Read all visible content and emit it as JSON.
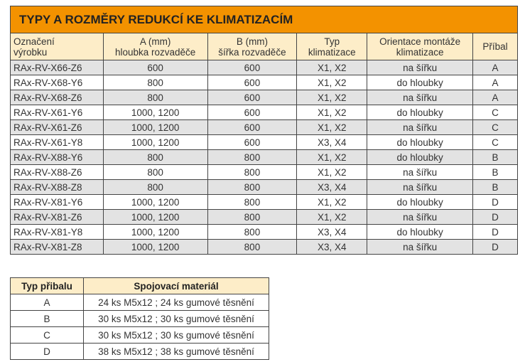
{
  "main_table": {
    "title": "TYPY A ROZMĚRY REDUKCÍ KE KLIMATIZACÍM",
    "headers": [
      [
        "Označení",
        "výrobku"
      ],
      [
        "A (mm)",
        "hloubka rozvaděče"
      ],
      [
        "B (mm)",
        "šířka rozvaděče"
      ],
      [
        "Typ",
        "klimatizace"
      ],
      [
        "Orientace montáže",
        "klimatizace"
      ],
      [
        "Příbal",
        ""
      ]
    ],
    "rows": [
      [
        "RAx-RV-X66-Z6",
        "600",
        "600",
        "X1, X2",
        "na šířku",
        "A"
      ],
      [
        "RAx-RV-X68-Y6",
        "800",
        "600",
        "X1, X2",
        "do hloubky",
        "A"
      ],
      [
        "RAx-RV-X68-Z6",
        "800",
        "600",
        "X1, X2",
        "na šířku",
        "A"
      ],
      [
        "RAx-RV-X61-Y6",
        "1000, 1200",
        "600",
        "X1, X2",
        "do hloubky",
        "C"
      ],
      [
        "RAx-RV-X61-Z6",
        "1000, 1200",
        "600",
        "X1, X2",
        "na šířku",
        "C"
      ],
      [
        "RAx-RV-X61-Y8",
        "1000, 1200",
        "600",
        "X3, X4",
        "do hloubky",
        "C"
      ],
      [
        "RAx-RV-X88-Y6",
        "800",
        "800",
        "X1, X2",
        "do hloubky",
        "B"
      ],
      [
        "RAx-RV-X88-Z6",
        "800",
        "800",
        "X1, X2",
        "na šířku",
        "B"
      ],
      [
        "RAx-RV-X88-Z8",
        "800",
        "800",
        "X3, X4",
        "na šířku",
        "B"
      ],
      [
        "RAx-RV-X81-Y6",
        "1000, 1200",
        "800",
        "X1, X2",
        "do hloubky",
        "D"
      ],
      [
        "RAx-RV-X81-Z6",
        "1000, 1200",
        "800",
        "X1, X2",
        "na šířku",
        "D"
      ],
      [
        "RAx-RV-X81-Y8",
        "1000, 1200",
        "800",
        "X3, X4",
        "do hloubky",
        "D"
      ],
      [
        "RAx-RV-X81-Z8",
        "1000, 1200",
        "800",
        "X3, X4",
        "na šířku",
        "D"
      ]
    ]
  },
  "pack_table": {
    "headers": [
      "Typ přibalu",
      "Spojovací materiál"
    ],
    "rows": [
      [
        "A",
        "24 ks M5x12 ; 24 ks gumové těsnění"
      ],
      [
        "B",
        "30 ks M5x12 ; 30 ks gumové těsnění"
      ],
      [
        "C",
        "30 ks M5x12 ; 30 ks gumové těsnění"
      ],
      [
        "D",
        "38 ks M5x12 ; 38 ks gumové těsnění"
      ]
    ]
  }
}
